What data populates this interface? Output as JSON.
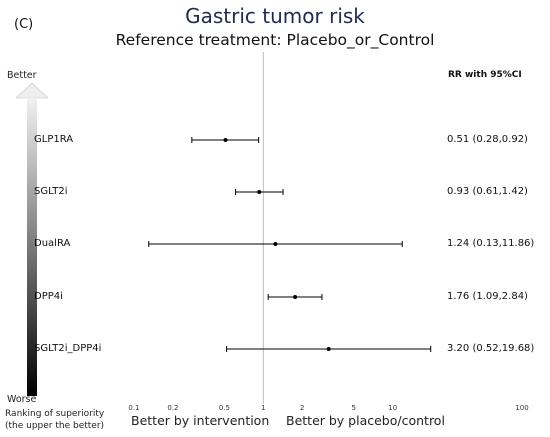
{
  "panel_label": "(C)",
  "title": "Gastric tumor risk",
  "subtitle": "Reference treatment: Placebo_or_Control",
  "ranking": {
    "better_label": "Better",
    "worse_label": "Worse",
    "caption_line1": "Ranking of superiority",
    "caption_line2": "(the upper the better)"
  },
  "rr_header": "RR with 95%CI",
  "footer": {
    "left": "Better by intervention",
    "right": "Better by placebo/control"
  },
  "colors": {
    "title": "#1f2a50",
    "ci_line": "#000000",
    "reference_line": "#bdbdbd",
    "arrow_top": "#f2f2f2",
    "arrow_bottom": "#000000"
  },
  "chart_data": {
    "type": "forest",
    "title": "Gastric tumor risk",
    "subtitle": "Reference treatment: Placebo_or_Control",
    "x_scale": "log",
    "xlim": [
      0.1,
      100
    ],
    "reference_value": 1,
    "x_ticks": [
      {
        "value": 0.1,
        "label": "0.1"
      },
      {
        "value": 0.2,
        "label": "0.2"
      },
      {
        "value": 0.5,
        "label": "0.5"
      },
      {
        "value": 1,
        "label": "1"
      },
      {
        "value": 2,
        "label": "2"
      },
      {
        "value": 5,
        "label": "5"
      },
      {
        "value": 10,
        "label": "10"
      },
      {
        "value": 100,
        "label": "100"
      }
    ],
    "rows": [
      {
        "label": "GLP1RA",
        "rr": 0.51,
        "lo": 0.28,
        "hi": 0.92,
        "text": "0.51 (0.28,0.92)"
      },
      {
        "label": "SGLT2i",
        "rr": 0.93,
        "lo": 0.61,
        "hi": 1.42,
        "text": "0.93 (0.61,1.42)"
      },
      {
        "label": "DualRA",
        "rr": 1.24,
        "lo": 0.13,
        "hi": 11.86,
        "text": "1.24 (0.13,11.86)"
      },
      {
        "label": "DPP4i",
        "rr": 1.76,
        "lo": 1.09,
        "hi": 2.84,
        "text": "1.76 (1.09,2.84)"
      },
      {
        "label": "SGLT2i_DPP4i",
        "rr": 3.2,
        "lo": 0.52,
        "hi": 19.68,
        "text": "3.20 (0.52,19.68)"
      }
    ]
  }
}
